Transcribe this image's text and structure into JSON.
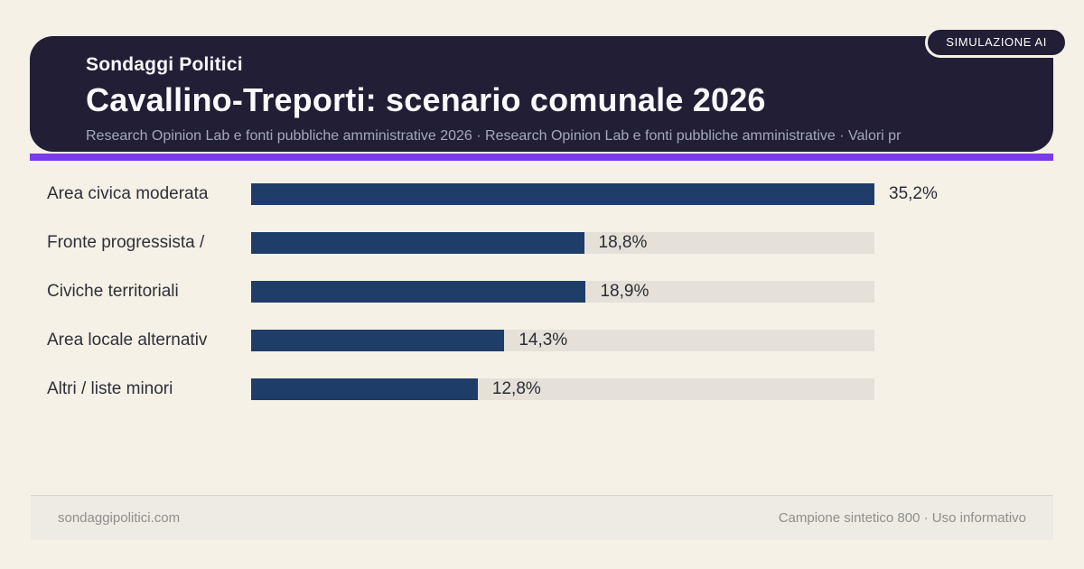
{
  "badge": {
    "label": "SIMULAZIONE AI"
  },
  "header": {
    "kicker": "Sondaggi Politici",
    "title": "Cavallino-Treporti: scenario comunale 2026",
    "subtitle": "Research Opinion Lab e fonti pubbliche amministrative 2026 · Research Opinion Lab e fonti pubbliche amministrative · Valori pr"
  },
  "chart_data": {
    "type": "bar",
    "orientation": "horizontal",
    "categories": [
      "Area civica moderata",
      "Fronte progressista /",
      "Civiche territoriali",
      "Area locale alternativ",
      "Altri / liste minori"
    ],
    "values": [
      35.2,
      18.8,
      18.9,
      14.3,
      12.8
    ],
    "value_labels": [
      "35,2%",
      "18,8%",
      "18,9%",
      "14,3%",
      "12,8%"
    ],
    "max_value": 35.2,
    "xlim": [
      0,
      35.2
    ],
    "grid": false,
    "legend": false,
    "bar_color": "#1f3d69",
    "track_color": "#e5e1d8",
    "accent_color": "#7c3aed"
  },
  "footer": {
    "left": "sondaggipolitici.com",
    "right": "Campione sintetico 800 · Uso informativo"
  }
}
